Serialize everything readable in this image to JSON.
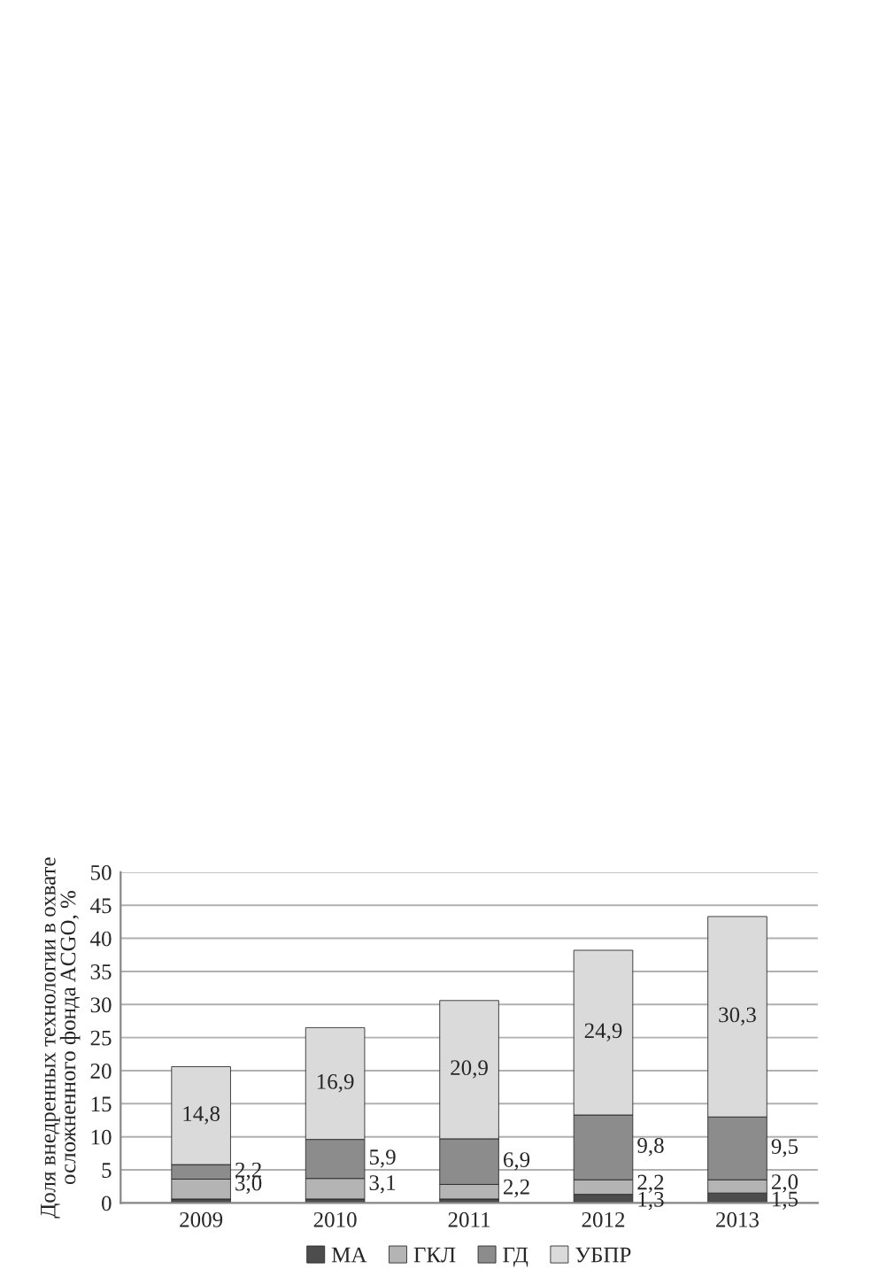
{
  "chart_data": {
    "type": "bar",
    "stacked": true,
    "ylabel": "Доля внедренных технологии в охвате осложненного фонда ACGO, %",
    "categories": [
      "2009",
      "2010",
      "2011",
      "2012",
      "2013"
    ],
    "series": [
      {
        "name": "МА",
        "color": "#4d4d4d",
        "values": [
          0.6,
          0.6,
          0.6,
          1.3,
          1.5
        ],
        "value_labels": [
          null,
          null,
          null,
          "1,3",
          "1,5"
        ]
      },
      {
        "name": "ГКЛ",
        "color": "#b4b4b4",
        "values": [
          3.0,
          3.1,
          2.2,
          2.2,
          2.0
        ],
        "value_labels": [
          "3,0",
          "3,1",
          "2,2",
          "2,2",
          "2,0"
        ]
      },
      {
        "name": "ГД",
        "color": "#8c8c8c",
        "values": [
          2.2,
          5.9,
          6.9,
          9.8,
          9.5
        ],
        "value_labels": [
          "2,2",
          "5,9",
          "6,9",
          "9,8",
          "9,5"
        ]
      },
      {
        "name": "УБПР",
        "color": "#dadada",
        "values": [
          14.8,
          16.9,
          20.9,
          24.9,
          30.3
        ],
        "value_labels": [
          "14,8",
          "16,9",
          "20,9",
          "24,9",
          "30,3"
        ]
      }
    ],
    "ylim": [
      0,
      50
    ],
    "yticks": [
      0,
      5,
      10,
      15,
      20,
      25,
      30,
      35,
      40,
      45,
      50
    ],
    "grid": "y",
    "legend": "bottom"
  }
}
